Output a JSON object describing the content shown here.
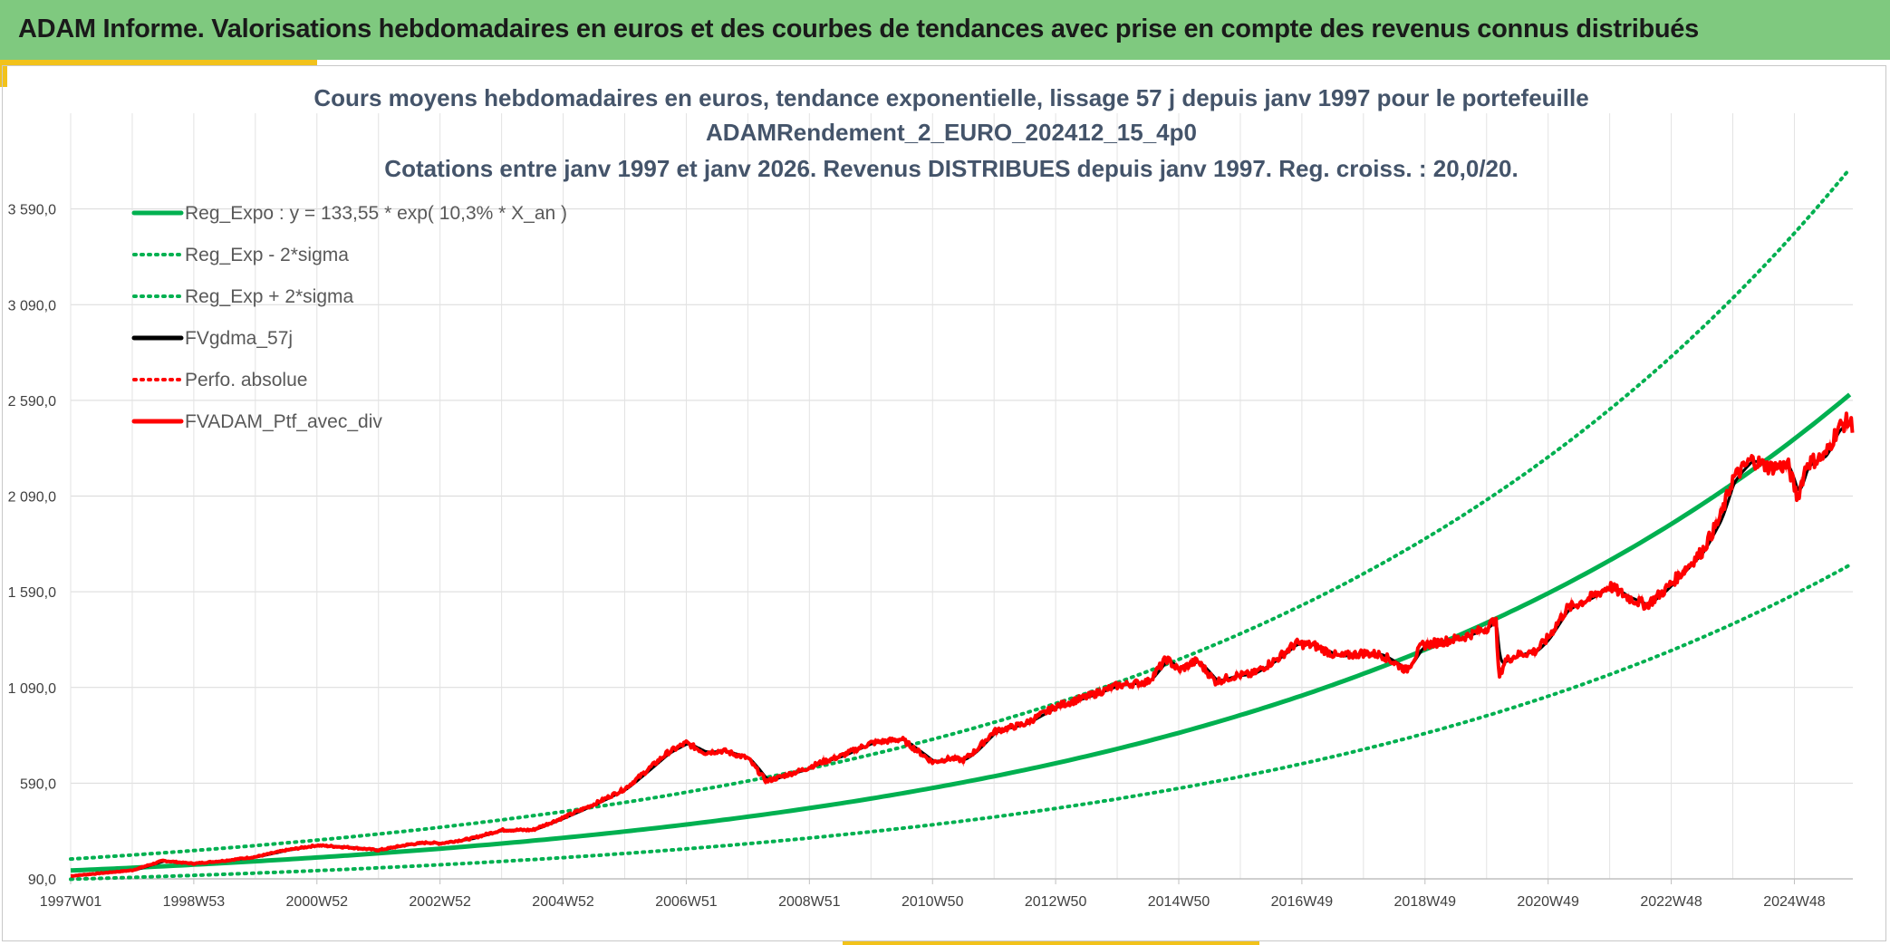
{
  "header": {
    "title": "ADAM Informe. Valorisations hebdomadaires en euros et des courbes de tendances avec prise en compte des revenus connus distribués"
  },
  "colors": {
    "header_bg": "#7fc97f",
    "accent": "#f2c21b",
    "trend": "#00b050",
    "fv57": "#000000",
    "ptf": "#ff0000",
    "title_text": "#44546a"
  },
  "chart_data": {
    "type": "line",
    "title_lines": [
      "Cours moyens hebdomadaires en euros, tendance exponentielle, lissage 57 j depuis janv 1997 pour le portefeuille",
      "ADAMRendement_2_EURO_202412_15_4p0",
      "Cotations entre janv 1997 et janv 2026. Revenus DISTRIBUES depuis janv 1997. Reg. croiss. : 20,0/20."
    ],
    "xlabel": "",
    "ylabel": "",
    "x_range": [
      1997.0,
      2025.95
    ],
    "ylim": [
      90,
      4090
    ],
    "y_ticks": [
      90,
      590,
      1090,
      1590,
      2090,
      2590,
      3090,
      3590
    ],
    "y_tick_labels": [
      "90,0",
      "590,0",
      "1 090,0",
      "1 590,0",
      "2 090,0",
      "2 590,0",
      "3 090,0",
      "3 590,0"
    ],
    "x_ticks": [
      1997.0,
      1999.0,
      2001.0,
      2003.0,
      2005.0,
      2007.0,
      2009.0,
      2011.0,
      2013.0,
      2015.0,
      2017.0,
      2019.0,
      2021.0,
      2023.0,
      2025.0
    ],
    "x_tick_labels": [
      "1997W01",
      "1998W53",
      "2000W52",
      "2002W52",
      "2004W52",
      "2006W51",
      "2008W51",
      "2010W50",
      "2012W50",
      "2014W50",
      "2016W49",
      "2018W49",
      "2020W49",
      "2022W48",
      "2024W48"
    ],
    "grid": true,
    "legend_position": "top-left",
    "regression": {
      "a": 133.55,
      "rate_pct": 10.3,
      "sigma_factor_lower": 0.66,
      "sigma_factor_upper": 1.45
    },
    "series": [
      {
        "name": "Reg_Expo : y = 133,55 * exp( 10,3% *  X_an )",
        "style": "solid-green",
        "kind": "trend"
      },
      {
        "name": "Reg_Exp - 2*sigma",
        "style": "dotted-green",
        "kind": "lower"
      },
      {
        "name": "Reg_Exp + 2*sigma",
        "style": "dotted-green",
        "kind": "upper"
      },
      {
        "name": "FVgdma_57j",
        "style": "solid-black",
        "kind": "smooth"
      },
      {
        "name": "Perfo. absolue",
        "style": "dotted-red",
        "kind": "perf"
      },
      {
        "name": "FVADAM_Ptf_avec_div",
        "style": "solid-red",
        "kind": "ptf",
        "x": [
          1997.0,
          1997.5,
          1998.0,
          1998.5,
          1998.8,
          1999.0,
          1999.5,
          2000.0,
          2000.5,
          2001.0,
          2001.5,
          2002.0,
          2002.5,
          2002.8,
          2003.0,
          2003.5,
          2004.0,
          2004.5,
          2005.0,
          2005.5,
          2006.0,
          2006.3,
          2006.7,
          2007.0,
          2007.3,
          2007.6,
          2008.0,
          2008.3,
          2008.7,
          2008.9,
          2009.2,
          2009.5,
          2010.0,
          2010.5,
          2011.0,
          2011.3,
          2011.5,
          2011.7,
          2012.0,
          2012.5,
          2013.0,
          2013.5,
          2014.0,
          2014.5,
          2014.8,
          2015.0,
          2015.3,
          2015.6,
          2015.9,
          2016.2,
          2016.6,
          2016.9,
          2017.2,
          2017.6,
          2018.0,
          2018.3,
          2018.7,
          2018.95,
          2019.3,
          2019.6,
          2020.0,
          2020.15,
          2020.2,
          2020.3,
          2020.5,
          2020.8,
          2021.0,
          2021.3,
          2021.7,
          2022.0,
          2022.3,
          2022.6,
          2022.9,
          2023.2,
          2023.5,
          2023.8,
          2024.0,
          2024.3,
          2024.6,
          2024.9,
          2025.05,
          2025.2,
          2025.5,
          2025.7,
          2025.85,
          2025.95
        ],
        "values": [
          105,
          120,
          135,
          185,
          175,
          170,
          185,
          205,
          240,
          265,
          255,
          240,
          270,
          280,
          275,
          300,
          345,
          345,
          410,
          480,
          560,
          640,
          750,
          800,
          750,
          760,
          720,
          600,
          640,
          660,
          700,
          730,
          800,
          820,
          700,
          720,
          710,
          760,
          860,
          900,
          990,
          1040,
          1100,
          1120,
          1240,
          1180,
          1230,
          1120,
          1150,
          1160,
          1240,
          1320,
          1310,
          1250,
          1270,
          1260,
          1180,
          1310,
          1330,
          1350,
          1400,
          1450,
          1140,
          1230,
          1260,
          1280,
          1350,
          1500,
          1560,
          1620,
          1560,
          1520,
          1600,
          1700,
          1800,
          1980,
          2180,
          2280,
          2240,
          2250,
          2080,
          2260,
          2300,
          2440,
          2480,
          2460
        ]
      }
    ]
  }
}
